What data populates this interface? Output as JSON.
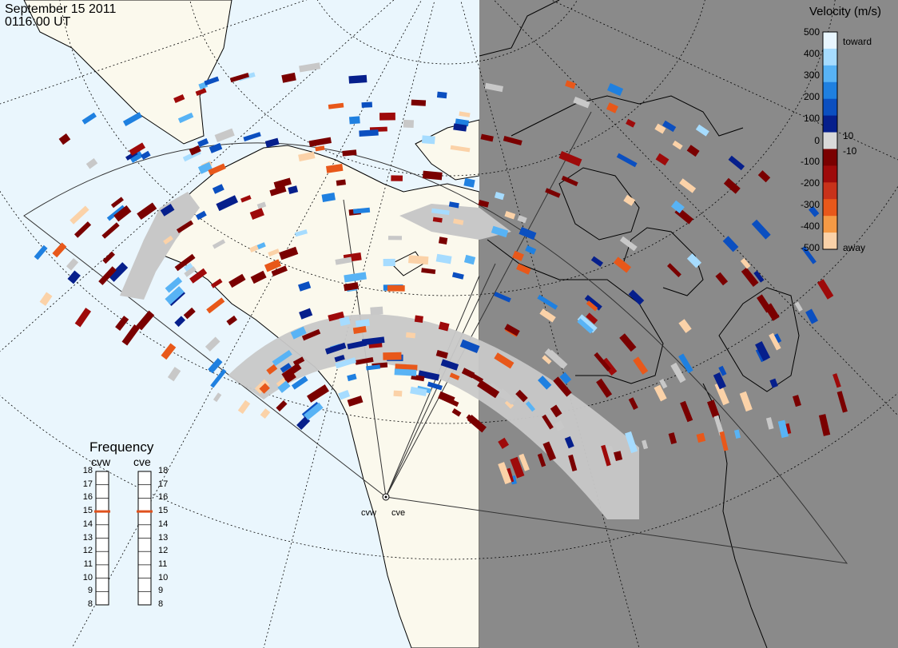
{
  "header": {
    "date": "September 15 2011",
    "time": "0116:00 UT"
  },
  "colorbar": {
    "title": "Velocity (m/s)",
    "ticks": [
      "500",
      "400",
      "300",
      "200",
      "100",
      "10",
      "0",
      "-10",
      "-100",
      "-200",
      "-300",
      "-400",
      "-500"
    ],
    "toward_label": "toward",
    "away_label": "away",
    "colors": [
      "#e8f6ff",
      "#a6dcff",
      "#58b3f5",
      "#1f80e0",
      "#0b4fc0",
      "#061f8c",
      "#d9d9d9",
      "#7a0000",
      "#9e0a0a",
      "#c8321a",
      "#e8581a",
      "#f59a45",
      "#fbd2a8"
    ]
  },
  "frequency": {
    "title": "Frequency",
    "radar_left": "cvw",
    "radar_right": "cve",
    "ticks": [
      "18",
      "17",
      "16",
      "15",
      "14",
      "13",
      "12",
      "11",
      "10",
      "9",
      "8"
    ],
    "current_left": 15,
    "current_right": 15,
    "marker_color": "#e0521e"
  },
  "radars": {
    "west_label": "cvw",
    "east_label": "cve"
  },
  "colors": {
    "ocean": "#eaf6fd",
    "land": "#fbf9ed",
    "night": "#8a8a8a",
    "ground_scatter": "#c8c8c8"
  }
}
